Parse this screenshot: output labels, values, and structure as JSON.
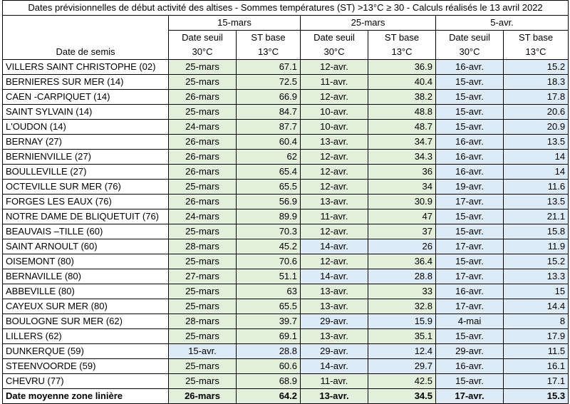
{
  "title": "Dates prévisionnelles de début activité des altises - Sommes températures (ST) >13°C ≥ 30 - Calculs réalisés le 13 avril 2022",
  "header": {
    "row_label": "Date de semis",
    "periods": [
      "15-mars",
      "25-mars",
      "5-avr."
    ],
    "col_date": "Date seuil 30°C",
    "col_date_l1": "Date seuil",
    "col_date_l2": "30°C",
    "col_st_l1": "ST base",
    "col_st_l2": "13°C"
  },
  "colors": {
    "green": "#e2efda",
    "blue": "#ddebf7"
  },
  "rows": [
    {
      "name": "VILLERS SAINT CHRISTOPHE (02)",
      "d1": "25-mars",
      "s1": "67.1",
      "c1": "green",
      "d2": "12-avr.",
      "s2": "36.9",
      "c2": "green",
      "d3": "16-avr.",
      "s3": "15.2",
      "c3": "blue"
    },
    {
      "name": "BERNIERES SUR MER (14)",
      "d1": "25-mars",
      "s1": "72.5",
      "c1": "green",
      "d2": "11-avr.",
      "s2": "40.4",
      "c2": "green",
      "d3": "15-avr.",
      "s3": "18.3",
      "c3": "blue"
    },
    {
      "name": "CAEN -CARPIQUET (14)",
      "d1": "26-mars",
      "s1": "66.9",
      "c1": "green",
      "d2": "12-avr.",
      "s2": "38.2",
      "c2": "green",
      "d3": "15-avr.",
      "s3": "17.8",
      "c3": "blue"
    },
    {
      "name": "SAINT SYLVAIN (14)",
      "d1": "25-mars",
      "s1": "84.7",
      "c1": "green",
      "d2": "10-avr.",
      "s2": "48.8",
      "c2": "green",
      "d3": "15-avr.",
      "s3": "20.6",
      "c3": "blue"
    },
    {
      "name": "L'OUDON (14)",
      "d1": "24-mars",
      "s1": "87.7",
      "c1": "green",
      "d2": "10-avr.",
      "s2": "48.7",
      "c2": "green",
      "d3": "15-avr.",
      "s3": "20.9",
      "c3": "blue"
    },
    {
      "name": "BERNAY (27)",
      "d1": "26-mars",
      "s1": "60.4",
      "c1": "green",
      "d2": "13-avr.",
      "s2": "34.7",
      "c2": "green",
      "d3": "16-avr.",
      "s3": "13.5",
      "c3": "blue"
    },
    {
      "name": "BERNIENVILLE (27)",
      "d1": "26-mars",
      "s1": "62",
      "c1": "green",
      "d2": "12-avr.",
      "s2": "34.3",
      "c2": "green",
      "d3": "16-avr.",
      "s3": "14",
      "c3": "blue"
    },
    {
      "name": "BOULLEVILLE (27)",
      "d1": "26-mars",
      "s1": "65.4",
      "c1": "green",
      "d2": "12-avr.",
      "s2": "36",
      "c2": "green",
      "d3": "16-avr.",
      "s3": "14",
      "c3": "blue"
    },
    {
      "name": "OCTEVILLE SUR MER (76)",
      "d1": "25-mars",
      "s1": "65.5",
      "c1": "green",
      "d2": "12-avr.",
      "s2": "34",
      "c2": "green",
      "d3": "19-avr.",
      "s3": "11.6",
      "c3": "blue"
    },
    {
      "name": "FORGES LES EAUX (76)",
      "d1": "26-mars",
      "s1": "56.9",
      "c1": "green",
      "d2": "13-avr.",
      "s2": "30.9",
      "c2": "green",
      "d3": "17-avr.",
      "s3": "13.5",
      "c3": "blue"
    },
    {
      "name": "NOTRE DAME DE BLIQUETUIT (76)",
      "d1": "24-mars",
      "s1": "89.9",
      "c1": "green",
      "d2": "11-avr.",
      "s2": "47",
      "c2": "green",
      "d3": "15-avr.",
      "s3": "21.1",
      "c3": "blue"
    },
    {
      "name": "BEAUVAIS –TILLE (60)",
      "d1": "25-mars",
      "s1": "70.3",
      "c1": "green",
      "d2": "12-avr.",
      "s2": "37",
      "c2": "green",
      "d3": "15-avr.",
      "s3": "15.8",
      "c3": "blue"
    },
    {
      "name": "SAINT ARNOULT (60)",
      "d1": "28-mars",
      "s1": "45.2",
      "c1": "green",
      "d2": "14-avr.",
      "s2": "26",
      "c2": "blue",
      "d3": "17-avr.",
      "s3": "11.9",
      "c3": "blue"
    },
    {
      "name": "OISEMONT (80)",
      "d1": "25-mars",
      "s1": "70.6",
      "c1": "green",
      "d2": "12-avr.",
      "s2": "36.4",
      "c2": "green",
      "d3": "15-avr.",
      "s3": "15.2",
      "c3": "blue"
    },
    {
      "name": "BERNAVILLE (80)",
      "d1": "27-mars",
      "s1": "51.1",
      "c1": "green",
      "d2": "14-avr.",
      "s2": "28.8",
      "c2": "blue",
      "d3": "17-avr.",
      "s3": "13.3",
      "c3": "blue"
    },
    {
      "name": "ABBEVILLE (80)",
      "d1": "25-mars",
      "s1": "63",
      "c1": "green",
      "d2": "13-avr.",
      "s2": "33",
      "c2": "green",
      "d3": "16-avr.",
      "s3": "15",
      "c3": "blue"
    },
    {
      "name": "CAYEUX SUR MER (80)",
      "d1": "25-mars",
      "s1": "65.5",
      "c1": "green",
      "d2": "13-avr.",
      "s2": "32.8",
      "c2": "green",
      "d3": "17-avr.",
      "s3": "14.4",
      "c3": "blue"
    },
    {
      "name": "BOULOGNE SUR MER (62)",
      "d1": "28-mars",
      "s1": "39.7",
      "c1": "green",
      "d2": "29-avr.",
      "s2": "15.9",
      "c2": "blue",
      "d3": "4-mai",
      "s3": "8",
      "c3": "blue"
    },
    {
      "name": "LILLERS (62)",
      "d1": "25-mars",
      "s1": "69.1",
      "c1": "green",
      "d2": "13-avr.",
      "s2": "35.1",
      "c2": "green",
      "d3": "15-avr.",
      "s3": "17.9",
      "c3": "blue"
    },
    {
      "name": "DUNKERQUE (59)",
      "d1": "15-avr.",
      "s1": "28.8",
      "c1": "blue",
      "d2": "29-avr.",
      "s2": "12.4",
      "c2": "blue",
      "d3": "29-avr.",
      "s3": "11.5",
      "c3": "blue"
    },
    {
      "name": "STEENVOORDE (59)",
      "d1": "25-mars",
      "s1": "60.6",
      "c1": "green",
      "d2": "14-avr.",
      "s2": "29.7",
      "c2": "blue",
      "d3": "16-avr.",
      "s3": "16.1",
      "c3": "blue"
    },
    {
      "name": "CHEVRU (77)",
      "d1": "25-mars",
      "s1": "68.9",
      "c1": "green",
      "d2": "11-avr.",
      "s2": "42.5",
      "c2": "green",
      "d3": "15-avr.",
      "s3": "17.1",
      "c3": "blue"
    }
  ],
  "average": {
    "name": "Date moyenne zone linière",
    "d1": "26-mars",
    "s1": "64.2",
    "c1": "green",
    "d2": "13-avr.",
    "s2": "34.5",
    "c2": "green",
    "d3": "17-avr.",
    "s3": "15.3",
    "c3": "blue"
  }
}
